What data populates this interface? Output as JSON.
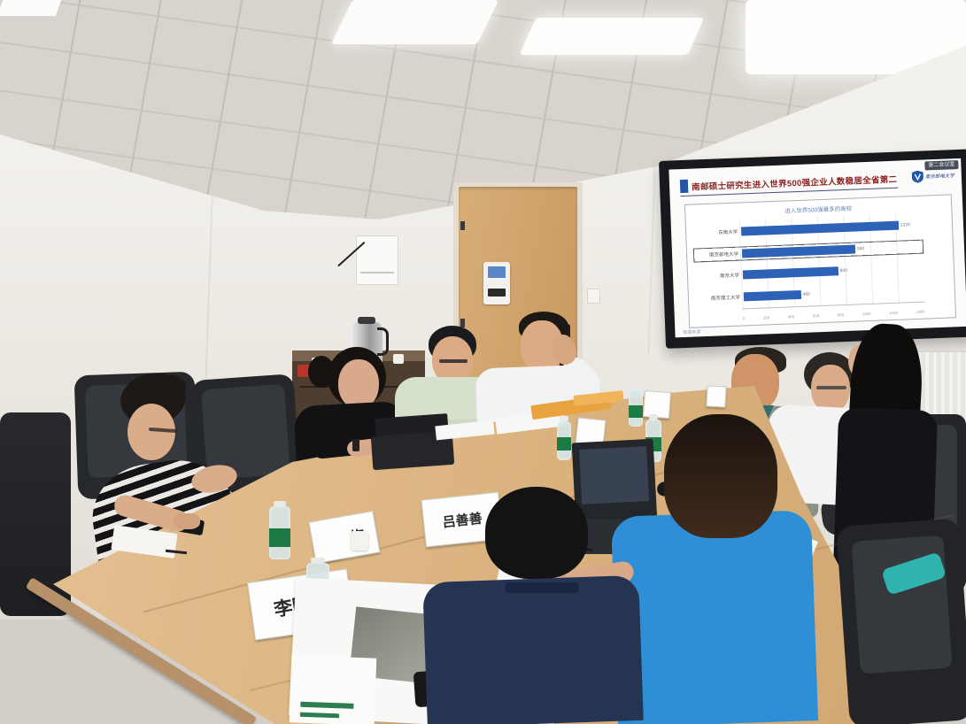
{
  "scene": {
    "type": "photograph",
    "description": "meeting room with nine people around a wooden conference table, wall TV showing a presentation slide",
    "people_count": 9
  },
  "tv": {
    "cast_badge": "第二会议室",
    "slide": {
      "title": "南邮硕士研究生进入世界500强企业人数稳居全省第二",
      "logo_text": "南京邮电大学",
      "logo_icon": "shield-icon",
      "source_note": "数据来源"
    }
  },
  "chart_data": {
    "type": "bar",
    "orientation": "horizontal",
    "title": "进入世界500强最多的高校",
    "categories": [
      "东南大学",
      "南京邮电大学",
      "南京大学",
      "南京理工大学"
    ],
    "values": [
      1320,
      950,
      800,
      480
    ],
    "highlight_index": 1,
    "xlim": [
      0,
      1500
    ],
    "x_ticks": [
      0,
      200,
      400,
      600,
      800,
      1000,
      1200,
      1400
    ],
    "bar_color": "#2d62b6",
    "grid": true,
    "legend": null
  },
  "name_plates": [
    {
      "text": "李明光"
    },
    {
      "text": "梅"
    },
    {
      "text": "吕善善"
    }
  ],
  "colors": {
    "accent_blue": "#2d62b6",
    "title_red": "#8c1f1f",
    "table_wood": "#ddb787",
    "chair_black": "#26282b",
    "blue_shirt": "#2f8fd6",
    "bottle_label_green": "#1e7a45"
  }
}
